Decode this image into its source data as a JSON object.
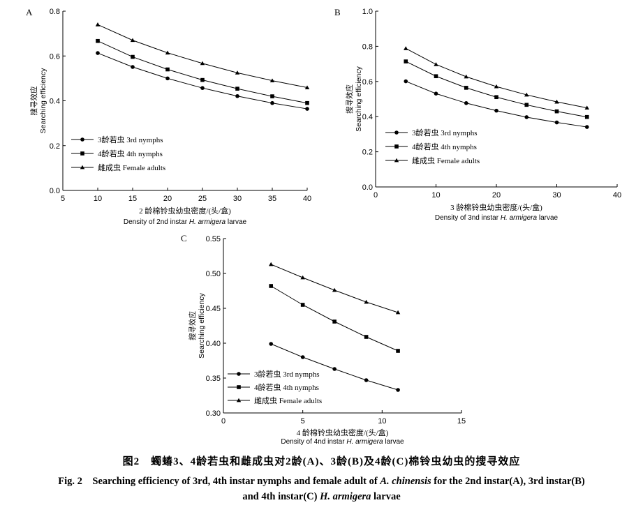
{
  "figure": {
    "caption_cn": "图2　蠋蝽3、4龄若虫和雌成虫对2龄(A)、3龄(B)及4龄(C)棉铃虫幼虫的搜寻效应",
    "caption_en_pre": "Fig. 2　Searching efficiency of 3rd, 4th instar nymphs and female adult of ",
    "caption_en_species": "A. chinensis",
    "caption_en_mid": " for the 2nd instar(A), 3rd instar(B)",
    "caption_en2_pre": "and 4th instar(C) ",
    "caption_en2_species": "H. armigera",
    "caption_en2_post": " larvae"
  },
  "chart_data": [
    {
      "panel": "A",
      "type": "line",
      "ylabel_cn": "搜寻效应",
      "ylabel_en": "Searching efficiency",
      "xlabel_cn": "2 龄棉铃虫幼虫密度/(头/盒)",
      "xlabel_en_pre": "Density of 2nd instar ",
      "xlabel_en_italic": "H. armigera",
      "xlabel_en_post": " larvae",
      "xlim": [
        5,
        40
      ],
      "ylim": [
        0,
        0.8
      ],
      "xticks": [
        5,
        10,
        15,
        20,
        25,
        30,
        35,
        40
      ],
      "yticks": [
        0,
        0.2,
        0.4,
        0.6,
        0.8
      ],
      "ytick_labels": [
        "0.0",
        "0.2",
        "0.4",
        "0.6",
        "0.8"
      ],
      "legend_position": "lower-left",
      "x": [
        10,
        15,
        20,
        25,
        30,
        35,
        40
      ],
      "series": [
        {
          "name": "3龄若虫 3rd nymphs",
          "marker": "circle",
          "values": [
            0.613,
            0.551,
            0.5,
            0.457,
            0.421,
            0.39,
            0.364
          ]
        },
        {
          "name": "4龄若虫 4th nymphs",
          "marker": "square",
          "values": [
            0.667,
            0.596,
            0.54,
            0.493,
            0.454,
            0.42,
            0.39
          ]
        },
        {
          "name": "雌成虫 Female adults",
          "marker": "triangle",
          "values": [
            0.74,
            0.67,
            0.614,
            0.567,
            0.525,
            0.49,
            0.459
          ]
        }
      ]
    },
    {
      "panel": "B",
      "type": "line",
      "ylabel_cn": "搜寻效应",
      "ylabel_en": "Searching efficiency",
      "xlabel_cn": "3 龄棉铃虫幼虫密度/(头/盒)",
      "xlabel_en_pre": "Density of 3nd instar ",
      "xlabel_en_italic": "H. armigera",
      "xlabel_en_post": " larvae",
      "xlim": [
        0,
        40
      ],
      "ylim": [
        0,
        1.0
      ],
      "xticks": [
        0,
        10,
        20,
        30,
        40
      ],
      "yticks": [
        0,
        0.2,
        0.4,
        0.6,
        0.8,
        1.0
      ],
      "ytick_labels": [
        "0.0",
        "0.2",
        "0.4",
        "0.6",
        "0.8",
        "1.0"
      ],
      "legend_position": "lower-left",
      "x": [
        5,
        10,
        15,
        20,
        25,
        30,
        35
      ],
      "series": [
        {
          "name": "3龄若虫 3rd nymphs",
          "marker": "circle",
          "values": [
            0.601,
            0.531,
            0.477,
            0.434,
            0.397,
            0.367,
            0.341
          ]
        },
        {
          "name": "4龄若虫 4th nymphs",
          "marker": "square",
          "values": [
            0.714,
            0.63,
            0.564,
            0.511,
            0.467,
            0.43,
            0.398
          ]
        },
        {
          "name": "雌成虫 Female adults",
          "marker": "triangle",
          "values": [
            0.788,
            0.697,
            0.627,
            0.571,
            0.524,
            0.484,
            0.45
          ]
        }
      ]
    },
    {
      "panel": "C",
      "type": "line",
      "ylabel_cn": "搜寻效应",
      "ylabel_en": "Searching efficiency",
      "xlabel_cn": "4 龄棉铃虫幼虫密度/(头/盒)",
      "xlabel_en_pre": "Density of 4nd instar ",
      "xlabel_en_italic": "H. armigera",
      "xlabel_en_post": " larvae",
      "xlim": [
        0,
        15
      ],
      "ylim": [
        0.3,
        0.55
      ],
      "xticks": [
        0,
        5,
        10,
        15
      ],
      "yticks": [
        0.3,
        0.35,
        0.4,
        0.45,
        0.5,
        0.55
      ],
      "ytick_labels": [
        "0.30",
        "0.35",
        "0.40",
        "0.45",
        "0.50",
        "0.55"
      ],
      "legend_position": "lower-left",
      "x": [
        3,
        5,
        7,
        9,
        11
      ],
      "series": [
        {
          "name": "3龄若虫 3rd nymphs",
          "marker": "circle",
          "values": [
            0.399,
            0.38,
            0.363,
            0.347,
            0.333
          ]
        },
        {
          "name": "4龄若虫 4th nymphs",
          "marker": "square",
          "values": [
            0.482,
            0.455,
            0.431,
            0.409,
            0.389
          ]
        },
        {
          "name": "雌成虫 Female adults",
          "marker": "triangle",
          "values": [
            0.513,
            0.494,
            0.476,
            0.459,
            0.444
          ]
        }
      ]
    }
  ]
}
